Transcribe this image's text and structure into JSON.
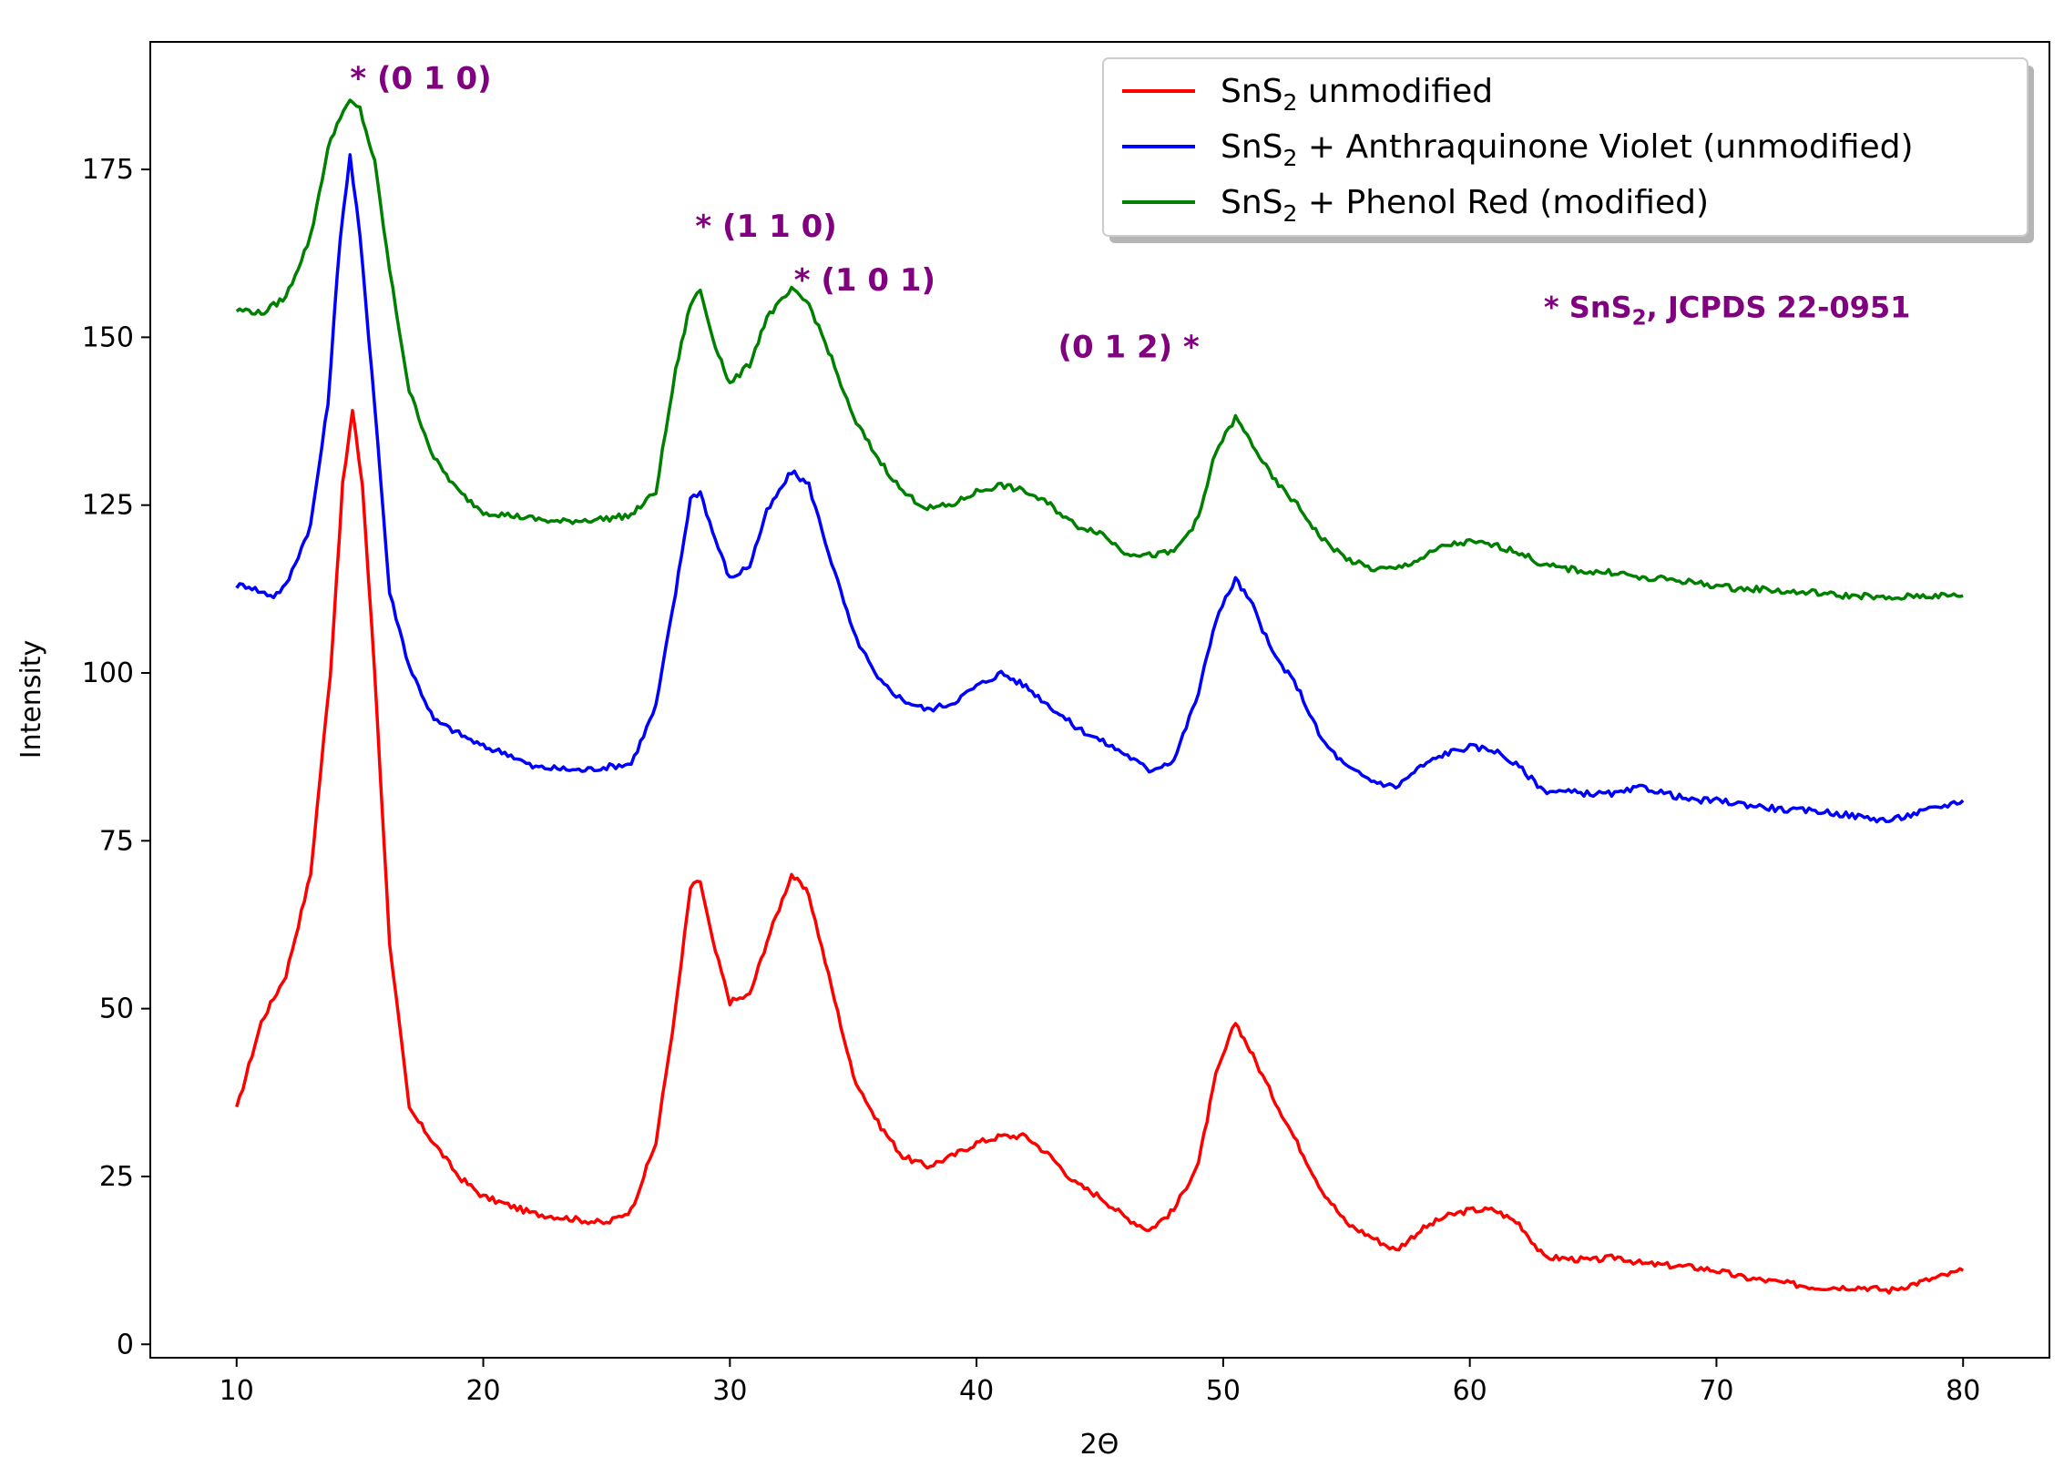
{
  "chart_data": {
    "type": "line",
    "title": "",
    "xlabel": "2Θ",
    "ylabel": "Intensity",
    "xlim": [
      6.5,
      83.5
    ],
    "ylim": [
      -2,
      194
    ],
    "xticks": [
      10,
      20,
      30,
      40,
      50,
      60,
      70,
      80
    ],
    "yticks": [
      0,
      25,
      50,
      75,
      100,
      125,
      150,
      175
    ],
    "grid": false,
    "legend_position": "top-right",
    "series": [
      {
        "name": "SnS2 unmodified",
        "legend_main": "SnS",
        "legend_sub": "2",
        "legend_tail": " unmodified",
        "color": "#ff0000",
        "points": [
          [
            10,
            35
          ],
          [
            11,
            48
          ],
          [
            12,
            55
          ],
          [
            13,
            70
          ],
          [
            13.8,
            100
          ],
          [
            14.3,
            128
          ],
          [
            14.7,
            139
          ],
          [
            15.1,
            128
          ],
          [
            15.6,
            100
          ],
          [
            16.2,
            60
          ],
          [
            17,
            35
          ],
          [
            18,
            30
          ],
          [
            19,
            25
          ],
          [
            20,
            22
          ],
          [
            22,
            19.5
          ],
          [
            24,
            18.5
          ],
          [
            25,
            18
          ],
          [
            26,
            20
          ],
          [
            27,
            30
          ],
          [
            27.8,
            50
          ],
          [
            28.4,
            68
          ],
          [
            28.8,
            69
          ],
          [
            29.3,
            60
          ],
          [
            30,
            51
          ],
          [
            30.8,
            52
          ],
          [
            31.5,
            60
          ],
          [
            32.5,
            70
          ],
          [
            33.2,
            67
          ],
          [
            34,
            55
          ],
          [
            35,
            40
          ],
          [
            36,
            33
          ],
          [
            37,
            28
          ],
          [
            38,
            26.5
          ],
          [
            39,
            28
          ],
          [
            40,
            30
          ],
          [
            41,
            31
          ],
          [
            42,
            31
          ],
          [
            43,
            28
          ],
          [
            44,
            24
          ],
          [
            45,
            22
          ],
          [
            46,
            19
          ],
          [
            47,
            17
          ],
          [
            48,
            20
          ],
          [
            49,
            27
          ],
          [
            49.7,
            40
          ],
          [
            50.5,
            48
          ],
          [
            51.2,
            43
          ],
          [
            52,
            37
          ],
          [
            53,
            30
          ],
          [
            54,
            23
          ],
          [
            55,
            18
          ],
          [
            56,
            16
          ],
          [
            57,
            14
          ],
          [
            58,
            17
          ],
          [
            59,
            19
          ],
          [
            60,
            20
          ],
          [
            61,
            20
          ],
          [
            62,
            18
          ],
          [
            63,
            13
          ],
          [
            65,
            12.5
          ],
          [
            66,
            13
          ],
          [
            67,
            12
          ],
          [
            69,
            11.5
          ],
          [
            70,
            11
          ],
          [
            71,
            10
          ],
          [
            72,
            9.5
          ],
          [
            73,
            9
          ],
          [
            74,
            8.5
          ],
          [
            75,
            8.5
          ],
          [
            76,
            8.5
          ],
          [
            77,
            8
          ],
          [
            78,
            9
          ],
          [
            79,
            10
          ],
          [
            80,
            11
          ]
        ]
      },
      {
        "name": "SnS2 + Anthraquinone Violet (unmodified)",
        "legend_main": "SnS",
        "legend_sub": "2",
        "legend_tail": " + Anthraquinone Violet (unmodified)",
        "color": "#0000ff",
        "points": [
          [
            10,
            113
          ],
          [
            10.5,
            113
          ],
          [
            11,
            112
          ],
          [
            11.5,
            111.5
          ],
          [
            12,
            113
          ],
          [
            13,
            122
          ],
          [
            13.7,
            140
          ],
          [
            14.2,
            165
          ],
          [
            14.6,
            177
          ],
          [
            15,
            165
          ],
          [
            15.6,
            140
          ],
          [
            16.2,
            112
          ],
          [
            17,
            101
          ],
          [
            18,
            93
          ],
          [
            19,
            91
          ],
          [
            20,
            89
          ],
          [
            21,
            88
          ],
          [
            22,
            86
          ],
          [
            24,
            85.5
          ],
          [
            25,
            86
          ],
          [
            26,
            86.5
          ],
          [
            27,
            95
          ],
          [
            27.8,
            112
          ],
          [
            28.4,
            126
          ],
          [
            28.8,
            127
          ],
          [
            29.3,
            121
          ],
          [
            30,
            114
          ],
          [
            30.8,
            116
          ],
          [
            31.5,
            124
          ],
          [
            32.5,
            130
          ],
          [
            33.2,
            128
          ],
          [
            34,
            118
          ],
          [
            35,
            106
          ],
          [
            36,
            99
          ],
          [
            37,
            96
          ],
          [
            38,
            94.5
          ],
          [
            39,
            95.5
          ],
          [
            40,
            98
          ],
          [
            41,
            100
          ],
          [
            42,
            98
          ],
          [
            43,
            95
          ],
          [
            44,
            92
          ],
          [
            45,
            90
          ],
          [
            46,
            88
          ],
          [
            47,
            85.5
          ],
          [
            48,
            87
          ],
          [
            49,
            97
          ],
          [
            49.7,
            108
          ],
          [
            50.5,
            114
          ],
          [
            51.2,
            110
          ],
          [
            52,
            103
          ],
          [
            53,
            98
          ],
          [
            54,
            90
          ],
          [
            55,
            86
          ],
          [
            56,
            84
          ],
          [
            57,
            83
          ],
          [
            58,
            86
          ],
          [
            59,
            88
          ],
          [
            60,
            89
          ],
          [
            61,
            88.5
          ],
          [
            62,
            86
          ],
          [
            63,
            82.5
          ],
          [
            65,
            82
          ],
          [
            66,
            82
          ],
          [
            67,
            83
          ],
          [
            68,
            82
          ],
          [
            69,
            81
          ],
          [
            70,
            81
          ],
          [
            71,
            80.5
          ],
          [
            72,
            80
          ],
          [
            73,
            79.5
          ],
          [
            74,
            79.5
          ],
          [
            75,
            79
          ],
          [
            76,
            78.5
          ],
          [
            77,
            78
          ],
          [
            78,
            79
          ],
          [
            79,
            80
          ],
          [
            80,
            81
          ]
        ]
      },
      {
        "name": "SnS2 + Phenol Red (modified)",
        "legend_main": "SnS",
        "legend_sub": "2",
        "legend_tail": " + Phenol Red (modified)",
        "color": "#008000",
        "points": [
          [
            10,
            154
          ],
          [
            10.5,
            154
          ],
          [
            11,
            153.5
          ],
          [
            12,
            156
          ],
          [
            13,
            165
          ],
          [
            13.7,
            178
          ],
          [
            14.2,
            183
          ],
          [
            14.6,
            185
          ],
          [
            15,
            184
          ],
          [
            15.6,
            176
          ],
          [
            16.2,
            160
          ],
          [
            17,
            142
          ],
          [
            18,
            132
          ],
          [
            19,
            127
          ],
          [
            20,
            124
          ],
          [
            22,
            123
          ],
          [
            23,
            122.5
          ],
          [
            25,
            123
          ],
          [
            26,
            123.5
          ],
          [
            27,
            127
          ],
          [
            27.8,
            145
          ],
          [
            28.4,
            155
          ],
          [
            28.8,
            157
          ],
          [
            29.3,
            150
          ],
          [
            30,
            143
          ],
          [
            30.8,
            146
          ],
          [
            31.5,
            153
          ],
          [
            32.5,
            157
          ],
          [
            33.2,
            155
          ],
          [
            34,
            148
          ],
          [
            35,
            138
          ],
          [
            36,
            132
          ],
          [
            37,
            127
          ],
          [
            38,
            124.5
          ],
          [
            39,
            125
          ],
          [
            40,
            127
          ],
          [
            41,
            128
          ],
          [
            42,
            127
          ],
          [
            43,
            125
          ],
          [
            44,
            122
          ],
          [
            45,
            121
          ],
          [
            46,
            118
          ],
          [
            47,
            117.5
          ],
          [
            48,
            118
          ],
          [
            49,
            123
          ],
          [
            49.7,
            133
          ],
          [
            50.5,
            138
          ],
          [
            51.2,
            134
          ],
          [
            52,
            129
          ],
          [
            53,
            125
          ],
          [
            54,
            120
          ],
          [
            55,
            117
          ],
          [
            56,
            115.5
          ],
          [
            57,
            115.5
          ],
          [
            58,
            117
          ],
          [
            59,
            119
          ],
          [
            60,
            119.5
          ],
          [
            61,
            119
          ],
          [
            62,
            118
          ],
          [
            63,
            116
          ],
          [
            65,
            115
          ],
          [
            66,
            115
          ],
          [
            67,
            114
          ],
          [
            68,
            114
          ],
          [
            69,
            113.5
          ],
          [
            70,
            113
          ],
          [
            71,
            112.5
          ],
          [
            72,
            112.5
          ],
          [
            73,
            112
          ],
          [
            74,
            112
          ],
          [
            75,
            111.5
          ],
          [
            76,
            111.5
          ],
          [
            77,
            111
          ],
          [
            78,
            111.5
          ],
          [
            79,
            111.5
          ],
          [
            80,
            111.5
          ]
        ]
      }
    ],
    "annotations": [
      {
        "text": "* (0 1 0)",
        "x": 14.6,
        "y": 187,
        "anchor": "start"
      },
      {
        "text": "* (1 1 0)",
        "x": 28.6,
        "y": 165,
        "anchor": "start"
      },
      {
        "text": "* (1 0 1)",
        "x": 32.6,
        "y": 157,
        "anchor": "start"
      },
      {
        "text": "(0 1 2) *",
        "x": 43.3,
        "y": 147,
        "anchor": "start"
      }
    ],
    "reference_note": {
      "main": "* SnS",
      "sub": "2",
      "tail": ", JCPDS 22-0951",
      "x": 63,
      "y": 153
    },
    "annotation_color": "#800080"
  }
}
